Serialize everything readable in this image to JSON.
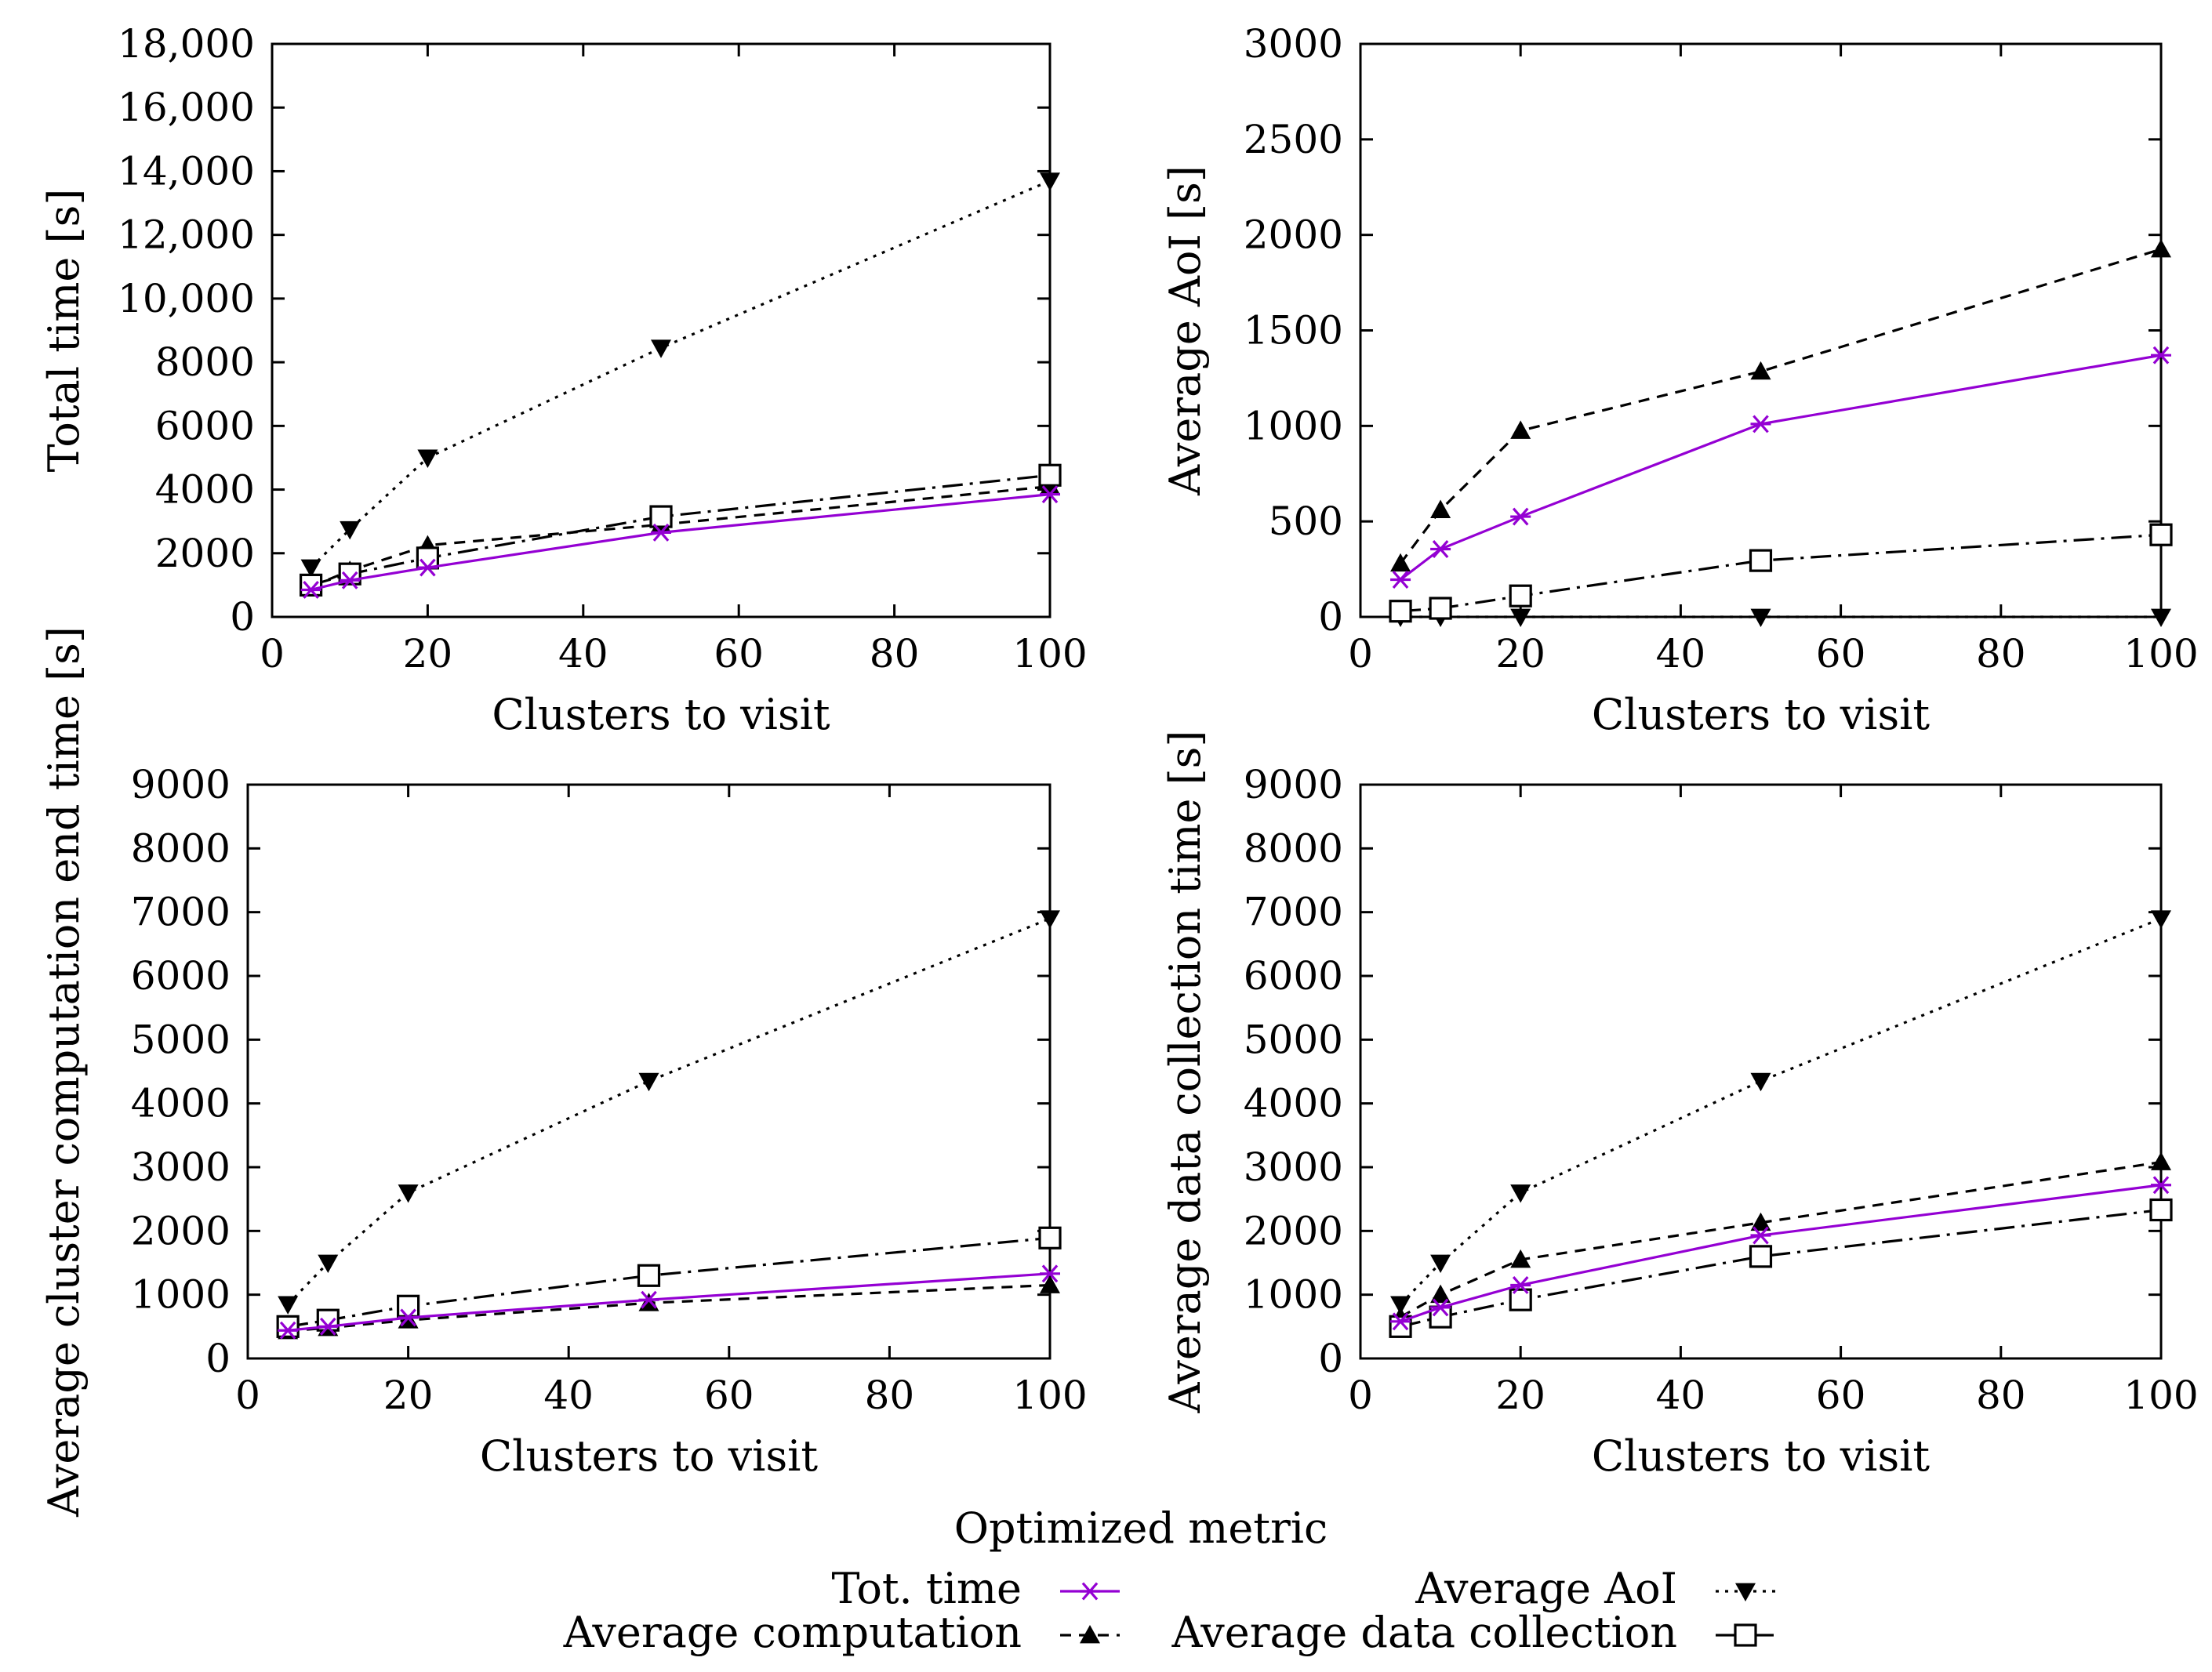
{
  "legend": {
    "title": "Optimized metric",
    "entries": [
      {
        "key": "tot",
        "label": "Tot. time"
      },
      {
        "key": "aoi",
        "label": "Average AoI"
      },
      {
        "key": "comp",
        "label": "Average computation"
      },
      {
        "key": "dc",
        "label": "Average data collection"
      }
    ]
  },
  "colors": {
    "tot": "#9400d3",
    "aoi": "#000000",
    "comp": "#000000",
    "dc": "#000000"
  },
  "chart_data": [
    {
      "type": "line",
      "xlabel": "Clusters to visit",
      "ylabel": "Total time  [s]",
      "xlim": [
        0,
        100
      ],
      "ylim": [
        0,
        18000
      ],
      "xticks": [
        0,
        20,
        40,
        60,
        80,
        100
      ],
      "yticks": [
        0,
        2000,
        4000,
        6000,
        8000,
        10000,
        12000,
        14000,
        16000,
        18000
      ],
      "ytick_labels": [
        "0",
        "2000",
        "4000",
        "6000",
        "8000",
        "10,000",
        "12,000",
        "14,000",
        "16,000",
        "18,000"
      ],
      "x": [
        5,
        10,
        20,
        50,
        100
      ],
      "series": [
        {
          "key": "tot",
          "values": [
            850,
            1150,
            1550,
            2650,
            3850
          ]
        },
        {
          "key": "comp",
          "values": [
            950,
            1450,
            2250,
            2900,
            4100
          ]
        },
        {
          "key": "dc",
          "values": [
            1000,
            1350,
            1850,
            3150,
            4450
          ]
        },
        {
          "key": "aoi",
          "values": [
            1550,
            2750,
            5000,
            8450,
            13700
          ]
        }
      ]
    },
    {
      "type": "line",
      "xlabel": "Clusters to visit",
      "ylabel": "Average AoI  [s]",
      "xlim": [
        0,
        100
      ],
      "ylim": [
        0,
        3000
      ],
      "xticks": [
        0,
        20,
        40,
        60,
        80,
        100
      ],
      "yticks": [
        0,
        500,
        1000,
        1500,
        2000,
        2500,
        3000
      ],
      "ytick_labels": [
        "0",
        "500",
        "1000",
        "1500",
        "2000",
        "2500",
        "3000"
      ],
      "x": [
        5,
        10,
        20,
        50,
        100
      ],
      "series": [
        {
          "key": "tot",
          "values": [
            195,
            355,
            525,
            1010,
            1370
          ]
        },
        {
          "key": "comp",
          "values": [
            280,
            560,
            975,
            1285,
            1925
          ]
        },
        {
          "key": "dc",
          "values": [
            30,
            45,
            110,
            295,
            430
          ]
        },
        {
          "key": "aoi",
          "values": [
            0,
            0,
            0,
            0,
            0
          ]
        }
      ]
    },
    {
      "type": "line",
      "xlabel": "Clusters to visit",
      "ylabel": "Average cluster computation end time [s]",
      "xlim": [
        0,
        100
      ],
      "ylim": [
        0,
        9000
      ],
      "xticks": [
        0,
        20,
        40,
        60,
        80,
        100
      ],
      "yticks": [
        0,
        1000,
        2000,
        3000,
        4000,
        5000,
        6000,
        7000,
        8000,
        9000
      ],
      "ytick_labels": [
        "0",
        "1000",
        "2000",
        "3000",
        "4000",
        "5000",
        "6000",
        "7000",
        "8000",
        "9000"
      ],
      "x": [
        5,
        10,
        20,
        50,
        100
      ],
      "series": [
        {
          "key": "tot",
          "values": [
            440,
            500,
            640,
            920,
            1330
          ]
        },
        {
          "key": "comp",
          "values": [
            430,
            480,
            600,
            870,
            1150
          ]
        },
        {
          "key": "dc",
          "values": [
            500,
            600,
            820,
            1300,
            1890
          ]
        },
        {
          "key": "aoi",
          "values": [
            850,
            1500,
            2600,
            4350,
            6900
          ]
        }
      ]
    },
    {
      "type": "line",
      "xlabel": "Clusters to visit",
      "ylabel": "Average data collection time [s]",
      "xlim": [
        0,
        100
      ],
      "ylim": [
        0,
        9000
      ],
      "xticks": [
        0,
        20,
        40,
        60,
        80,
        100
      ],
      "yticks": [
        0,
        1000,
        2000,
        3000,
        4000,
        5000,
        6000,
        7000,
        8000,
        9000
      ],
      "ytick_labels": [
        "0",
        "1000",
        "2000",
        "3000",
        "4000",
        "5000",
        "6000",
        "7000",
        "8000",
        "9000"
      ],
      "x": [
        5,
        10,
        20,
        50,
        100
      ],
      "series": [
        {
          "key": "tot",
          "values": [
            580,
            800,
            1150,
            1930,
            2720
          ]
        },
        {
          "key": "comp",
          "values": [
            650,
            1000,
            1550,
            2130,
            3080
          ]
        },
        {
          "key": "dc",
          "values": [
            500,
            650,
            920,
            1600,
            2330
          ]
        },
        {
          "key": "aoi",
          "values": [
            850,
            1500,
            2600,
            4350,
            6900
          ]
        }
      ]
    }
  ]
}
